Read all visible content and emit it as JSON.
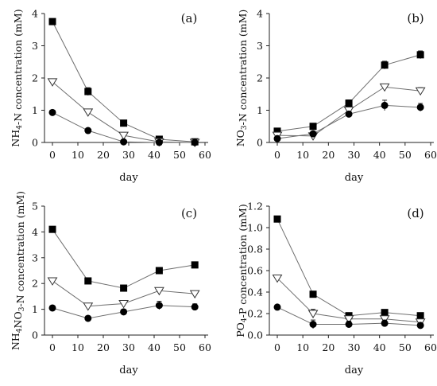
{
  "chart_data": [
    {
      "type": "scatter",
      "panel_label": "(a)",
      "xlabel": "day",
      "ylabel": {
        "pre": "NH",
        "sub": "4",
        "post": "-N concentration (mM)"
      },
      "xlim": [
        0,
        60
      ],
      "ylim": [
        0,
        4
      ],
      "xticks": [
        0,
        10,
        20,
        30,
        40,
        50,
        60
      ],
      "yticks": [
        0,
        1,
        2,
        3,
        4
      ],
      "x": [
        0,
        14,
        28,
        42,
        56
      ],
      "series": [
        {
          "marker": "square",
          "values": [
            3.75,
            1.58,
            0.6,
            0.1,
            0.02
          ],
          "errors": [
            0,
            0.12,
            0.04,
            0.03,
            0.02
          ]
        },
        {
          "marker": "triangle-down-open",
          "values": [
            1.88,
            0.94,
            0.22,
            0.02,
            0.0
          ],
          "errors": [
            0,
            0.05,
            0.03,
            0.02,
            0.0
          ]
        },
        {
          "marker": "circle",
          "values": [
            0.93,
            0.37,
            0.02,
            0.0,
            0.0
          ],
          "errors": [
            0,
            0.03,
            0.02,
            0.0,
            0.0
          ]
        }
      ]
    },
    {
      "type": "scatter",
      "panel_label": "(b)",
      "xlabel": "day",
      "ylabel": {
        "pre": "NO",
        "sub": "3",
        "post": "-N concentration (mM)"
      },
      "xlim": [
        0,
        60
      ],
      "ylim": [
        0,
        4
      ],
      "xticks": [
        0,
        10,
        20,
        30,
        40,
        50,
        60
      ],
      "yticks": [
        0,
        1,
        2,
        3,
        4
      ],
      "x": [
        0,
        14,
        28,
        42,
        56
      ],
      "series": [
        {
          "marker": "square",
          "values": [
            0.35,
            0.5,
            1.22,
            2.4,
            2.72
          ],
          "errors": [
            0.03,
            0.05,
            0.1,
            0.12,
            0.12
          ]
        },
        {
          "marker": "triangle-down-open",
          "values": [
            0.22,
            0.2,
            1.0,
            1.72,
            1.6
          ],
          "errors": [
            0.02,
            0.03,
            0.08,
            0.08,
            0.1
          ]
        },
        {
          "marker": "circle",
          "values": [
            0.12,
            0.27,
            0.88,
            1.15,
            1.09
          ],
          "errors": [
            0.02,
            0.03,
            0.06,
            0.16,
            0.12
          ]
        }
      ]
    },
    {
      "type": "scatter",
      "panel_label": "(c)",
      "xlabel": "day",
      "ylabel": {
        "pre": "NH",
        "sub": "4",
        "mid": "NO",
        "sub2": "3",
        "post": "-N concentration (mM)"
      },
      "xlim": [
        0,
        60
      ],
      "ylim": [
        0,
        5
      ],
      "xticks": [
        0,
        10,
        20,
        30,
        40,
        50,
        60
      ],
      "yticks": [
        0,
        1,
        2,
        3,
        4,
        5
      ],
      "x": [
        0,
        14,
        28,
        42,
        56
      ],
      "series": [
        {
          "marker": "square",
          "values": [
            4.1,
            2.1,
            1.82,
            2.5,
            2.72
          ],
          "errors": [
            0,
            0.05,
            0.05,
            0.08,
            0.12
          ]
        },
        {
          "marker": "triangle-down-open",
          "values": [
            2.1,
            1.12,
            1.22,
            1.72,
            1.6
          ],
          "errors": [
            0,
            0.05,
            0.05,
            0.08,
            0.08
          ]
        },
        {
          "marker": "circle",
          "values": [
            1.05,
            0.65,
            0.9,
            1.15,
            1.09
          ],
          "errors": [
            0,
            0.04,
            0.05,
            0.16,
            0.12
          ]
        }
      ]
    },
    {
      "type": "scatter",
      "panel_label": "(d)",
      "xlabel": "day",
      "ylabel": {
        "pre": "PO",
        "sub": "4",
        "post": "-P concentration (mM)"
      },
      "xlim": [
        0,
        60
      ],
      "ylim": [
        0,
        1.2
      ],
      "xticks": [
        0,
        10,
        20,
        30,
        40,
        50,
        60
      ],
      "yticks": [
        "0.0",
        "0.2",
        "0.4",
        "0.6",
        "0.8",
        "1.0",
        "1.2"
      ],
      "x": [
        0,
        14,
        28,
        42,
        56
      ],
      "series": [
        {
          "marker": "square",
          "values": [
            1.08,
            0.38,
            0.18,
            0.21,
            0.18
          ],
          "errors": [
            0,
            0.02,
            0.02,
            0.02,
            0.02
          ]
        },
        {
          "marker": "triangle-down-open",
          "values": [
            0.53,
            0.2,
            0.15,
            0.15,
            0.12
          ],
          "errors": [
            0,
            0.04,
            0.03,
            0.03,
            0.03
          ]
        },
        {
          "marker": "circle",
          "values": [
            0.26,
            0.1,
            0.1,
            0.11,
            0.09
          ],
          "errors": [
            0,
            0.04,
            0.03,
            0.03,
            0.02
          ]
        }
      ]
    }
  ]
}
